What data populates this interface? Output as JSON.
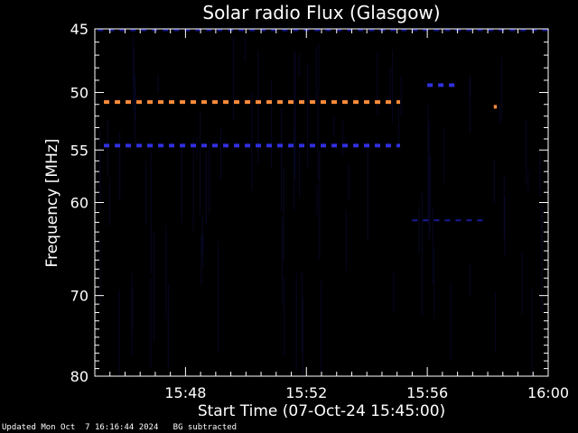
{
  "chart_data": {
    "type": "heatmap",
    "title": "Solar radio Flux (Glasgow)",
    "xlabel": "Start Time (07-Oct-24 15:45:00)",
    "ylabel": "Frequency [MHz]",
    "x_range_minutes": [
      0,
      15
    ],
    "x_ticks": [
      {
        "minute": 3,
        "label": "15:48"
      },
      {
        "minute": 7,
        "label": "15:52"
      },
      {
        "minute": 11,
        "label": "15:56"
      },
      {
        "minute": 15,
        "label": "16:00"
      }
    ],
    "y_scale": "log",
    "y_range_mhz": [
      45,
      80
    ],
    "y_ticks": [
      45,
      50,
      55,
      60,
      70,
      80
    ],
    "y_tick_labels": [
      "45",
      "50",
      "55",
      "60",
      "70",
      "80"
    ],
    "background_color": "#000000",
    "colors": {
      "weak": "#1a1a9a",
      "medium": "#3030e0",
      "strong": "#ff8c3a"
    },
    "signals": [
      {
        "name": "",
        "freq_mhz": 50.8,
        "t_start": 0.3,
        "t_end": 10.1,
        "level": "strong",
        "dashed": true
      },
      {
        "name": "",
        "freq_mhz": 54.6,
        "t_start": 0.3,
        "t_end": 10.1,
        "level": "medium",
        "dashed": true
      },
      {
        "name": "",
        "freq_mhz": 45.1,
        "t_start": 0.1,
        "t_end": 15.0,
        "level": "weak",
        "dashed": true
      },
      {
        "name": "",
        "freq_mhz": 49.4,
        "t_start": 11.0,
        "t_end": 12.0,
        "level": "medium",
        "dashed": true
      },
      {
        "name": "",
        "freq_mhz": 51.2,
        "t_start": 13.2,
        "t_end": 13.3,
        "level": "strong",
        "dashed": false
      },
      {
        "name": "",
        "freq_mhz": 61.8,
        "t_start": 10.5,
        "t_end": 13.0,
        "level": "weak",
        "dashed": true
      }
    ],
    "grid": false
  },
  "footer": {
    "updated": "Updated Mon Oct  7 16:16:44 2024",
    "note": "BG subtracted"
  }
}
